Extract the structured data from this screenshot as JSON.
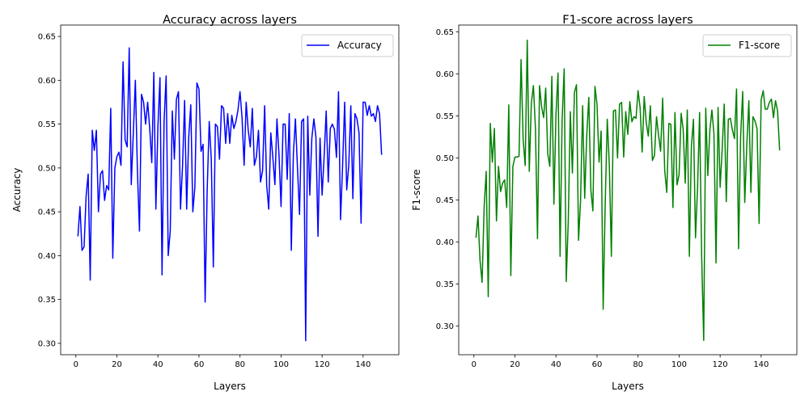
{
  "chart_data": [
    {
      "type": "line",
      "title": "Accuracy across layers",
      "xlabel": "Layers",
      "ylabel": "Accuracy",
      "xlim": [
        -7.4,
        157.4
      ],
      "ylim": [
        0.287,
        0.663
      ],
      "xticks": [
        0,
        20,
        40,
        60,
        80,
        100,
        120,
        140
      ],
      "yticks": [
        0.3,
        0.35,
        0.4,
        0.45,
        0.5,
        0.55,
        0.6,
        0.65
      ],
      "ytick_labels": [
        "0.30",
        "0.35",
        "0.40",
        "0.45",
        "0.50",
        "0.55",
        "0.60",
        "0.65"
      ],
      "legend": "top-right",
      "grid": false,
      "series": [
        {
          "name": "Accuracy",
          "color": "#0000ff",
          "x": [
            1,
            2,
            3,
            4,
            5,
            6,
            7,
            8,
            9,
            10,
            11,
            12,
            13,
            14,
            15,
            16,
            17,
            18,
            19,
            20,
            21,
            22,
            23,
            24,
            25,
            26,
            27,
            28,
            29,
            30,
            31,
            32,
            33,
            34,
            35,
            36,
            37,
            38,
            39,
            40,
            41,
            42,
            43,
            44,
            45,
            46,
            47,
            48,
            49,
            50,
            51,
            52,
            53,
            54,
            55,
            56,
            57,
            58,
            59,
            60,
            61,
            62,
            63,
            64,
            65,
            66,
            67,
            68,
            69,
            70,
            71,
            72,
            73,
            74,
            75,
            76,
            77,
            78,
            79,
            80,
            81,
            82,
            83,
            84,
            85,
            86,
            87,
            88,
            89,
            90,
            91,
            92,
            93,
            94,
            95,
            96,
            97,
            98,
            99,
            100,
            101,
            102,
            103,
            104,
            105,
            106,
            107,
            108,
            109,
            110,
            111,
            112,
            113,
            114,
            115,
            116,
            117,
            118,
            119,
            120,
            121,
            122,
            123,
            124,
            125,
            126,
            127,
            128,
            129,
            130,
            131,
            132,
            133,
            134,
            135,
            136,
            137,
            138,
            139,
            140,
            141,
            142,
            143,
            144,
            145,
            146,
            147,
            148,
            149
          ],
          "values": [
            0.422,
            0.456,
            0.406,
            0.41,
            0.468,
            0.493,
            0.372,
            0.543,
            0.52,
            0.543,
            0.45,
            0.493,
            0.497,
            0.463,
            0.48,
            0.475,
            0.568,
            0.397,
            0.5,
            0.513,
            0.518,
            0.503,
            0.621,
            0.532,
            0.524,
            0.637,
            0.481,
            0.54,
            0.6,
            0.497,
            0.428,
            0.584,
            0.575,
            0.55,
            0.575,
            0.545,
            0.506,
            0.609,
            0.453,
            0.548,
            0.603,
            0.378,
            0.553,
            0.605,
            0.4,
            0.428,
            0.565,
            0.51,
            0.578,
            0.587,
            0.453,
            0.503,
            0.577,
            0.453,
            0.535,
            0.572,
            0.45,
            0.478,
            0.597,
            0.59,
            0.519,
            0.527,
            0.347,
            0.475,
            0.553,
            0.51,
            0.387,
            0.55,
            0.547,
            0.51,
            0.571,
            0.568,
            0.528,
            0.562,
            0.528,
            0.56,
            0.545,
            0.553,
            0.566,
            0.587,
            0.557,
            0.503,
            0.575,
            0.543,
            0.524,
            0.568,
            0.503,
            0.513,
            0.543,
            0.484,
            0.497,
            0.571,
            0.48,
            0.453,
            0.54,
            0.512,
            0.481,
            0.556,
            0.515,
            0.456,
            0.55,
            0.55,
            0.487,
            0.562,
            0.406,
            0.516,
            0.556,
            0.5,
            0.447,
            0.553,
            0.556,
            0.303,
            0.559,
            0.469,
            0.534,
            0.556,
            0.535,
            0.422,
            0.534,
            0.469,
            0.513,
            0.565,
            0.484,
            0.545,
            0.55,
            0.544,
            0.512,
            0.587,
            0.441,
            0.503,
            0.575,
            0.475,
            0.503,
            0.571,
            0.465,
            0.562,
            0.556,
            0.54,
            0.437,
            0.575,
            0.575,
            0.56,
            0.571,
            0.559,
            0.562,
            0.553,
            0.571,
            0.562,
            0.515
          ]
        }
      ]
    },
    {
      "type": "line",
      "title": "F1-score across layers",
      "xlabel": "Layers",
      "ylabel": "F1-score",
      "xlim": [
        -7.4,
        157.4
      ],
      "ylim": [
        0.266,
        0.658
      ],
      "xticks": [
        0,
        20,
        40,
        60,
        80,
        100,
        120,
        140
      ],
      "yticks": [
        0.3,
        0.35,
        0.4,
        0.45,
        0.5,
        0.55,
        0.6,
        0.65
      ],
      "ytick_labels": [
        "0.30",
        "0.35",
        "0.40",
        "0.45",
        "0.50",
        "0.55",
        "0.60",
        "0.65"
      ],
      "legend": "top-right",
      "grid": false,
      "series": [
        {
          "name": "F1-score",
          "color": "#008000",
          "x": [
            1,
            2,
            3,
            4,
            5,
            6,
            7,
            8,
            9,
            10,
            11,
            12,
            13,
            14,
            15,
            16,
            17,
            18,
            19,
            20,
            21,
            22,
            23,
            24,
            25,
            26,
            27,
            28,
            29,
            30,
            31,
            32,
            33,
            34,
            35,
            36,
            37,
            38,
            39,
            40,
            41,
            42,
            43,
            44,
            45,
            46,
            47,
            48,
            49,
            50,
            51,
            52,
            53,
            54,
            55,
            56,
            57,
            58,
            59,
            60,
            61,
            62,
            63,
            64,
            65,
            66,
            67,
            68,
            69,
            70,
            71,
            72,
            73,
            74,
            75,
            76,
            77,
            78,
            79,
            80,
            81,
            82,
            83,
            84,
            85,
            86,
            87,
            88,
            89,
            90,
            91,
            92,
            93,
            94,
            95,
            96,
            97,
            98,
            99,
            100,
            101,
            102,
            103,
            104,
            105,
            106,
            107,
            108,
            109,
            110,
            111,
            112,
            113,
            114,
            115,
            116,
            117,
            118,
            119,
            120,
            121,
            122,
            123,
            124,
            125,
            126,
            127,
            128,
            129,
            130,
            131,
            132,
            133,
            134,
            135,
            136,
            137,
            138,
            139,
            140,
            141,
            142,
            143,
            144,
            145,
            146,
            147,
            148,
            149
          ],
          "values": [
            0.405,
            0.431,
            0.378,
            0.352,
            0.442,
            0.484,
            0.335,
            0.541,
            0.495,
            0.535,
            0.425,
            0.49,
            0.46,
            0.47,
            0.474,
            0.441,
            0.563,
            0.36,
            0.49,
            0.501,
            0.501,
            0.502,
            0.617,
            0.522,
            0.491,
            0.64,
            0.484,
            0.565,
            0.586,
            0.535,
            0.404,
            0.586,
            0.561,
            0.548,
            0.583,
            0.505,
            0.49,
            0.597,
            0.445,
            0.552,
            0.601,
            0.383,
            0.545,
            0.606,
            0.353,
            0.425,
            0.555,
            0.482,
            0.578,
            0.587,
            0.402,
            0.45,
            0.562,
            0.452,
            0.527,
            0.572,
            0.462,
            0.437,
            0.585,
            0.564,
            0.495,
            0.532,
            0.32,
            0.446,
            0.546,
            0.492,
            0.383,
            0.556,
            0.557,
            0.5,
            0.564,
            0.566,
            0.501,
            0.555,
            0.528,
            0.567,
            0.543,
            0.549,
            0.547,
            0.58,
            0.56,
            0.507,
            0.573,
            0.542,
            0.526,
            0.562,
            0.497,
            0.503,
            0.549,
            0.527,
            0.508,
            0.571,
            0.485,
            0.459,
            0.541,
            0.54,
            0.441,
            0.554,
            0.468,
            0.48,
            0.553,
            0.534,
            0.47,
            0.557,
            0.383,
            0.514,
            0.546,
            0.405,
            0.464,
            0.554,
            0.383,
            0.283,
            0.559,
            0.479,
            0.533,
            0.557,
            0.528,
            0.375,
            0.56,
            0.465,
            0.51,
            0.564,
            0.448,
            0.546,
            0.547,
            0.533,
            0.523,
            0.582,
            0.392,
            0.526,
            0.579,
            0.447,
            0.515,
            0.568,
            0.459,
            0.549,
            0.544,
            0.535,
            0.422,
            0.569,
            0.58,
            0.558,
            0.558,
            0.566,
            0.57,
            0.548,
            0.568,
            0.556,
            0.509
          ]
        }
      ]
    }
  ]
}
